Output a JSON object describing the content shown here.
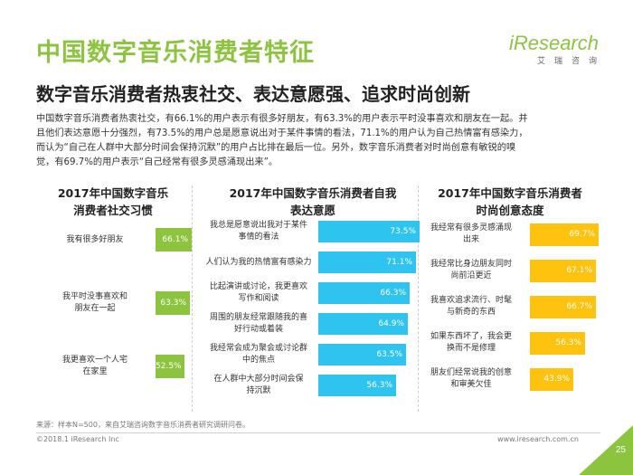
{
  "header": {
    "title": "中国数字音乐消费者特征",
    "subtitle": "数字音乐消费者热衷社交、表达意愿强、追求时尚创新",
    "logo": "iResearch",
    "logo_cn": "艾瑞咨询"
  },
  "intro_lines": [
    "中国数字音乐消费者热衷社交，有66.1%的用户表示有很多好朋友，有63.3%的用户表示平时没事喜欢和朋友在一起。并",
    "且他们表达意愿十分强烈，有73.5%的用户总是愿意说出对于某件事情的看法，71.1%的用户认为自己热情富有感染力，",
    "而认为“自己在人群中大部分时间会保持沉默”的用户占比排在最后一位。另外，数字音乐消费者对时尚创意有敏锐的嗅",
    "觉，有69.7%的用户表示“自己经常有很多灵感涌现出来”。"
  ],
  "colors": {
    "green": "#8cc43f",
    "cyan": "#2fc4ef",
    "yellow": "#ffc20e",
    "corner": "#8cc43f"
  },
  "chart_data": [
    {
      "type": "bar",
      "orientation": "horizontal",
      "title": [
        "2017年中国数字音乐",
        "消费者社交习惯"
      ],
      "categories": [
        [
          "我有很多好朋友"
        ],
        [
          "我平时没事喜欢和",
          "朋友在一起"
        ],
        [
          "我更喜欢一个人宅",
          "在家里"
        ]
      ],
      "values": [
        66.1,
        63.3,
        52.5
      ],
      "labels": [
        "66.1%",
        "63.3%",
        "52.5%"
      ],
      "color": "#8cc43f"
    },
    {
      "type": "bar",
      "orientation": "horizontal",
      "title": [
        "2017年中国数字音乐消费者自我",
        "表达意愿"
      ],
      "categories": [
        [
          "我总是愿意说出我对于某件",
          "事情的看法"
        ],
        [
          "人们认为我的热情富有感染力"
        ],
        [
          "比起演讲或讨论，我更喜欢",
          "写作和阅读"
        ],
        [
          "周围的朋友经常跟随我的喜",
          "好行动或着装"
        ],
        [
          "我经常会成为聚会或讨论群",
          "中的焦点"
        ],
        [
          "在人群中大部分时间会保",
          "持沉默"
        ]
      ],
      "values": [
        73.5,
        71.1,
        66.3,
        64.9,
        63.5,
        56.3
      ],
      "labels": [
        "73.5%",
        "71.1%",
        "66.3%",
        "64.9%",
        "63.5%",
        "56.3%"
      ],
      "color": "#2fc4ef"
    },
    {
      "type": "bar",
      "orientation": "horizontal",
      "title": [
        "2017年中国数字音乐消费者",
        "时尚创意态度"
      ],
      "categories": [
        [
          "我经常有很多灵感涌现",
          "出来"
        ],
        [
          "我经常比身边朋友同时",
          "尚前沿更近"
        ],
        [
          "我喜欢追求流行、时髦",
          "与新奇的东西"
        ],
        [
          "如果东西坏了，我会更",
          "换而不是修理"
        ],
        [
          "朋友们经常说我的创意",
          "和审美欠佳"
        ]
      ],
      "values": [
        69.7,
        67.1,
        66.7,
        56.3,
        43.9
      ],
      "labels": [
        "69.7%",
        "67.1%",
        "66.7%",
        "56.3%",
        "43.9%"
      ],
      "color": "#ffc20e"
    }
  ],
  "footer": {
    "source": "来源：样本N=500，来自艾瑞咨询数字音乐消费者研究调研问卷。",
    "copyright": "©2018.1 iResearch Inc",
    "site": "www.iresearch.com.cn",
    "page": "25"
  }
}
